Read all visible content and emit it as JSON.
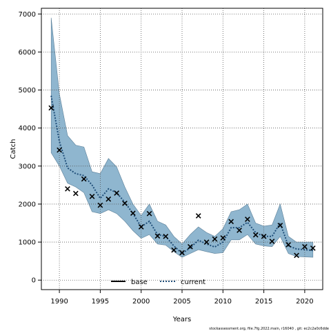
{
  "chart_data": {
    "type": "line",
    "xlabel": "Years",
    "ylabel": "Catch",
    "xlim": [
      1987.8,
      2022.2
    ],
    "ylim": [
      -250,
      7150
    ],
    "x_ticks": [
      1990,
      1995,
      2000,
      2005,
      2010,
      2015,
      2020
    ],
    "y_ticks": [
      0,
      1000,
      2000,
      3000,
      4000,
      5000,
      6000,
      7000
    ],
    "grid": true,
    "legend_position": "bottom-center",
    "legend": [
      {
        "label": "base",
        "style": "solid",
        "color": "#000000"
      },
      {
        "label": "current",
        "style": "dotted",
        "color": "#1f4e79"
      }
    ],
    "x": [
      1989,
      1990,
      1991,
      1992,
      1993,
      1994,
      1995,
      1996,
      1997,
      1998,
      1999,
      2000,
      2001,
      2002,
      2003,
      2004,
      2005,
      2006,
      2007,
      2008,
      2009,
      2010,
      2011,
      2012,
      2013,
      2014,
      2015,
      2016,
      2017,
      2018,
      2019,
      2020,
      2021
    ],
    "series": [
      {
        "name": "current",
        "style": "dotted",
        "color": "#1f4e79",
        "band_color": "#8fb6cf",
        "values": [
          4850,
          3650,
          2950,
          2800,
          2750,
          2500,
          2150,
          2400,
          2300,
          2050,
          1750,
          1400,
          1550,
          1200,
          1150,
          900,
          700,
          850,
          1050,
          950,
          870,
          1000,
          1380,
          1380,
          1520,
          1250,
          1150,
          1150,
          1500,
          900,
          820,
          800,
          780
        ],
        "lower": [
          3350,
          3000,
          2550,
          2450,
          2300,
          1800,
          1750,
          1850,
          1750,
          1550,
          1300,
          1100,
          1200,
          950,
          920,
          750,
          600,
          700,
          800,
          750,
          700,
          720,
          1060,
          1060,
          1200,
          950,
          900,
          880,
          1150,
          700,
          620,
          610,
          600
        ],
        "upper": [
          6900,
          4900,
          3800,
          3550,
          3500,
          2850,
          2800,
          3200,
          2980,
          2450,
          2000,
          1700,
          2000,
          1550,
          1450,
          1150,
          950,
          1200,
          1400,
          1250,
          1150,
          1350,
          1800,
          1850,
          2000,
          1500,
          1420,
          1450,
          2000,
          1150,
          1000,
          1000,
          1000
        ]
      },
      {
        "name": "base",
        "style": "markers",
        "marker": "x",
        "color": "#000000",
        "values": [
          4530,
          3420,
          2400,
          2280,
          2660,
          2200,
          1970,
          2130,
          2290,
          2020,
          1760,
          1400,
          1750,
          1160,
          1150,
          790,
          720,
          880,
          1690,
          1000,
          1080,
          1110,
          1540,
          1310,
          1600,
          1190,
          1150,
          1020,
          1440,
          930,
          650,
          880,
          840
        ]
      }
    ]
  },
  "caption": "stockassessment.org, file.7fg.2022.main, r16040 , git: ec2c2a0c6dde"
}
